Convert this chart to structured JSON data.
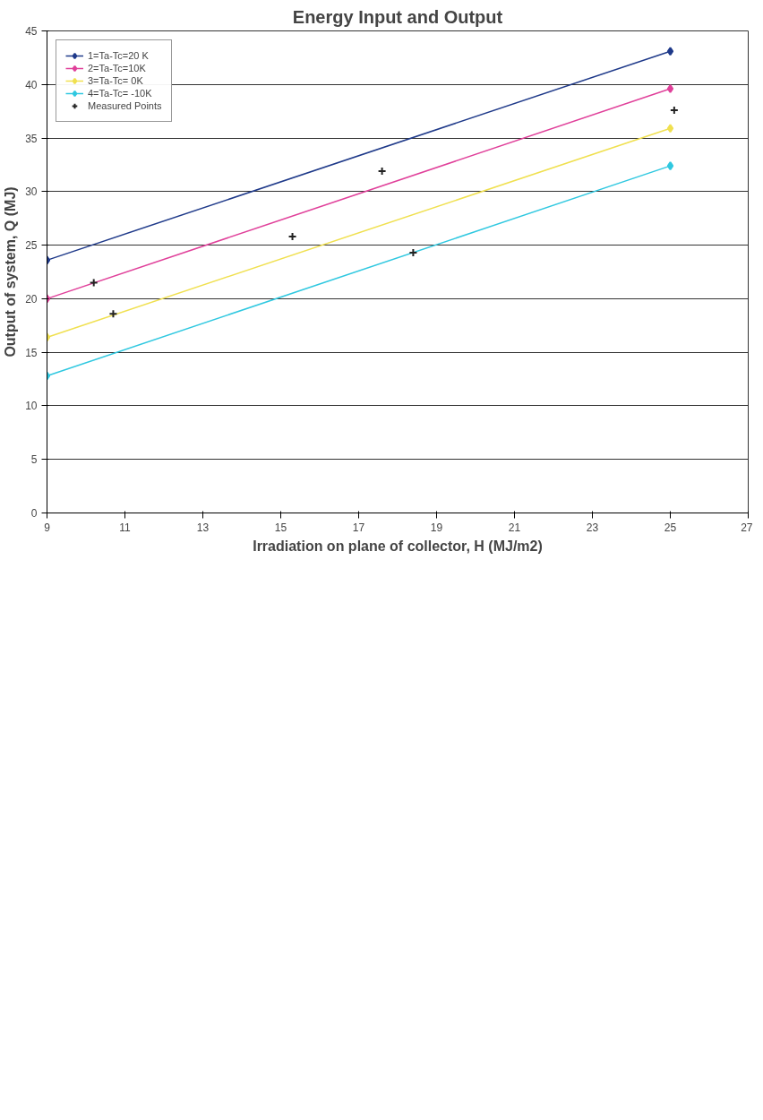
{
  "chart_data": {
    "type": "line",
    "title": "Energy Input and Output",
    "xlabel": "Irradiation on plane of collector, H (MJ/m2)",
    "ylabel": "Output of system, Q (MJ)",
    "x": [
      9,
      25
    ],
    "series": [
      {
        "name": "1=Ta-Tc=20 K",
        "color": "#1f3a8a",
        "values": [
          23.6,
          43.1
        ]
      },
      {
        "name": "2=Ta-Tc=10K",
        "color": "#e0409a",
        "values": [
          20.0,
          39.6
        ]
      },
      {
        "name": "3=Ta-Tc= 0K",
        "color": "#f0e050",
        "values": [
          16.4,
          35.9
        ]
      },
      {
        "name": "4=Ta-Tc= -10K",
        "color": "#30c8e0",
        "values": [
          12.8,
          32.4
        ]
      },
      {
        "name": "Measured Points",
        "type": "scatter",
        "marker": "cross",
        "color": "#222222",
        "x": [
          10.2,
          10.7,
          15.3,
          17.6,
          18.4,
          25.1
        ],
        "values": [
          21.5,
          18.6,
          25.8,
          31.9,
          24.3,
          37.6
        ]
      }
    ],
    "marker": "diamond",
    "line_style": "solid",
    "xlim": [
      9,
      27
    ],
    "xticks": [
      9,
      11,
      13,
      15,
      17,
      19,
      21,
      23,
      25,
      27
    ],
    "ylim": [
      0,
      45
    ],
    "yticks": [
      0,
      5,
      10,
      15,
      20,
      25,
      30,
      35,
      40,
      45
    ],
    "grid": "y",
    "legend": "top left"
  }
}
